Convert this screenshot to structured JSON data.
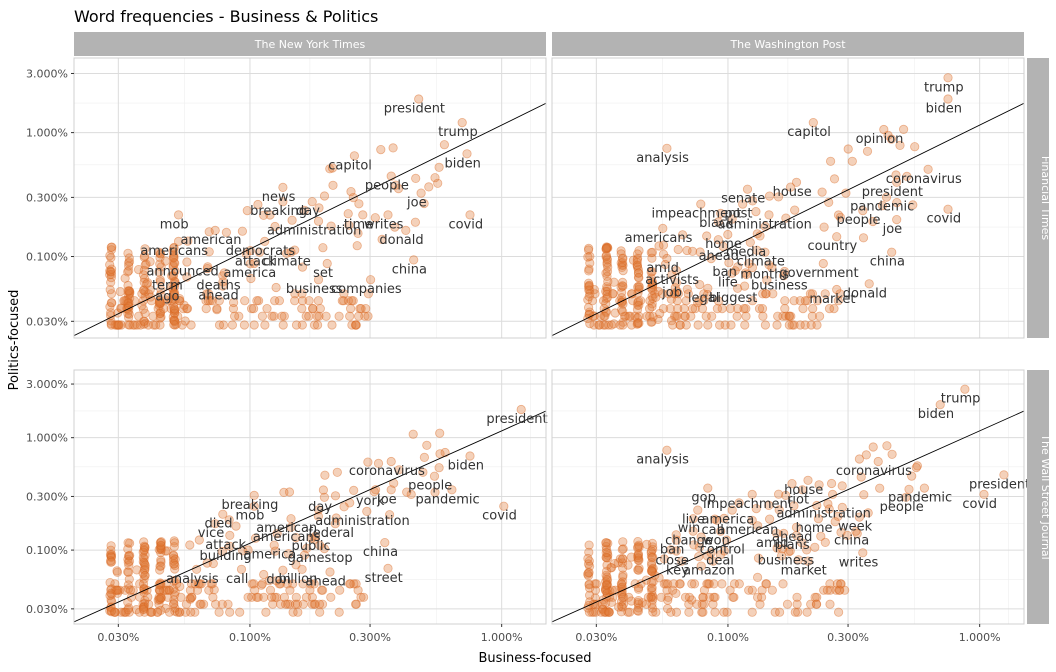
{
  "chart_data": {
    "type": "scatter",
    "title": "Word frequencies - Business & Politics",
    "xlabel": "Business-focused",
    "ylabel": "Politics-focused",
    "x_scale": "log10",
    "y_scale": "log10",
    "xlim": [
      0.02,
      1.5
    ],
    "ylim": [
      0.022,
      4.0
    ],
    "x_ticks": [
      0.03,
      0.1,
      0.3,
      1.0
    ],
    "x_tick_labels": [
      "0.030%",
      "0.100%",
      "0.300%",
      "1.000%"
    ],
    "y_ticks": [
      0.03,
      0.1,
      0.3,
      1.0,
      3.0
    ],
    "y_tick_labels": [
      "0.030%",
      "0.100%",
      "0.300%",
      "1.000%",
      "3.000%"
    ],
    "grid": true,
    "col_facets": [
      "The New York Times",
      "The Washington Post"
    ],
    "row_facets": [
      "Financial Times",
      "The Wall Street Journal"
    ],
    "panels": [
      {
        "politics_source": "The New York Times",
        "business_source": "Financial Times",
        "labels": [
          {
            "word": "president",
            "x": 0.45,
            "y": 1.55
          },
          {
            "word": "trump",
            "x": 0.67,
            "y": 1.0
          },
          {
            "word": "biden",
            "x": 0.7,
            "y": 0.56
          },
          {
            "word": "capitol",
            "x": 0.25,
            "y": 0.54
          },
          {
            "word": "people",
            "x": 0.35,
            "y": 0.37
          },
          {
            "word": "joe",
            "x": 0.46,
            "y": 0.27
          },
          {
            "word": "covid",
            "x": 0.72,
            "y": 0.18
          },
          {
            "word": "news",
            "x": 0.13,
            "y": 0.3
          },
          {
            "word": "day",
            "x": 0.17,
            "y": 0.23
          },
          {
            "word": "breaking",
            "x": 0.13,
            "y": 0.23
          },
          {
            "word": "time",
            "x": 0.27,
            "y": 0.18
          },
          {
            "word": "writes",
            "x": 0.34,
            "y": 0.18
          },
          {
            "word": "mob",
            "x": 0.05,
            "y": 0.18
          },
          {
            "word": "administration",
            "x": 0.18,
            "y": 0.16
          },
          {
            "word": "american",
            "x": 0.07,
            "y": 0.135
          },
          {
            "word": "donald",
            "x": 0.4,
            "y": 0.135
          },
          {
            "word": "americans",
            "x": 0.05,
            "y": 0.11
          },
          {
            "word": "democrats",
            "x": 0.11,
            "y": 0.11
          },
          {
            "word": "attack",
            "x": 0.105,
            "y": 0.09
          },
          {
            "word": "climate",
            "x": 0.14,
            "y": 0.09
          },
          {
            "word": "announced",
            "x": 0.054,
            "y": 0.075
          },
          {
            "word": "america",
            "x": 0.1,
            "y": 0.073
          },
          {
            "word": "set",
            "x": 0.195,
            "y": 0.073
          },
          {
            "word": "china",
            "x": 0.43,
            "y": 0.078
          },
          {
            "word": "term",
            "x": 0.047,
            "y": 0.058
          },
          {
            "word": "deaths",
            "x": 0.075,
            "y": 0.058
          },
          {
            "word": "business",
            "x": 0.18,
            "y": 0.054
          },
          {
            "word": "companies",
            "x": 0.29,
            "y": 0.054
          },
          {
            "word": "ago",
            "x": 0.047,
            "y": 0.047
          },
          {
            "word": "ahead",
            "x": 0.075,
            "y": 0.048
          }
        ]
      },
      {
        "politics_source": "The Washington Post",
        "business_source": "Financial Times",
        "labels": [
          {
            "word": "trump",
            "x": 0.72,
            "y": 2.3
          },
          {
            "word": "biden",
            "x": 0.72,
            "y": 1.55
          },
          {
            "word": "capitol",
            "x": 0.21,
            "y": 1.0
          },
          {
            "word": "opinion",
            "x": 0.4,
            "y": 0.88
          },
          {
            "word": "analysis",
            "x": 0.055,
            "y": 0.62
          },
          {
            "word": "coronavirus",
            "x": 0.6,
            "y": 0.42
          },
          {
            "word": "president",
            "x": 0.45,
            "y": 0.33
          },
          {
            "word": "house",
            "x": 0.18,
            "y": 0.33
          },
          {
            "word": "senate",
            "x": 0.115,
            "y": 0.29
          },
          {
            "word": "pandemic",
            "x": 0.41,
            "y": 0.25
          },
          {
            "word": "impeachment",
            "x": 0.075,
            "y": 0.22
          },
          {
            "word": "post",
            "x": 0.11,
            "y": 0.22
          },
          {
            "word": "covid",
            "x": 0.72,
            "y": 0.2
          },
          {
            "word": "people",
            "x": 0.33,
            "y": 0.195
          },
          {
            "word": "black",
            "x": 0.09,
            "y": 0.185
          },
          {
            "word": "administration",
            "x": 0.14,
            "y": 0.18
          },
          {
            "word": "joe",
            "x": 0.45,
            "y": 0.165
          },
          {
            "word": "americans",
            "x": 0.053,
            "y": 0.14
          },
          {
            "word": "home",
            "x": 0.096,
            "y": 0.125
          },
          {
            "word": "country",
            "x": 0.26,
            "y": 0.12
          },
          {
            "word": "media",
            "x": 0.118,
            "y": 0.108
          },
          {
            "word": "ahead",
            "x": 0.092,
            "y": 0.1
          },
          {
            "word": "climate",
            "x": 0.135,
            "y": 0.09
          },
          {
            "word": "china",
            "x": 0.43,
            "y": 0.09
          },
          {
            "word": "amid",
            "x": 0.055,
            "y": 0.08
          },
          {
            "word": "ban",
            "x": 0.097,
            "y": 0.074
          },
          {
            "word": "months",
            "x": 0.14,
            "y": 0.071
          },
          {
            "word": "government",
            "x": 0.23,
            "y": 0.073
          },
          {
            "word": "activists",
            "x": 0.06,
            "y": 0.064
          },
          {
            "word": "life",
            "x": 0.1,
            "y": 0.061
          },
          {
            "word": "business",
            "x": 0.16,
            "y": 0.058
          },
          {
            "word": "donald",
            "x": 0.35,
            "y": 0.05
          },
          {
            "word": "job",
            "x": 0.06,
            "y": 0.051
          },
          {
            "word": "legal",
            "x": 0.08,
            "y": 0.046
          },
          {
            "word": "biggest",
            "x": 0.105,
            "y": 0.046
          },
          {
            "word": "market",
            "x": 0.26,
            "y": 0.045
          }
        ]
      },
      {
        "politics_source": "The New York Times",
        "business_source": "The Wall Street Journal",
        "labels": [
          {
            "word": "president",
            "x": 1.15,
            "y": 1.45
          },
          {
            "word": "biden",
            "x": 0.72,
            "y": 0.56
          },
          {
            "word": "coronavirus",
            "x": 0.35,
            "y": 0.5
          },
          {
            "word": "people",
            "x": 0.52,
            "y": 0.37
          },
          {
            "word": "pandemic",
            "x": 0.61,
            "y": 0.28
          },
          {
            "word": "york",
            "x": 0.3,
            "y": 0.27
          },
          {
            "word": "joe",
            "x": 0.35,
            "y": 0.28
          },
          {
            "word": "day",
            "x": 0.19,
            "y": 0.24
          },
          {
            "word": "covid",
            "x": 0.98,
            "y": 0.2
          },
          {
            "word": "breaking",
            "x": 0.1,
            "y": 0.25
          },
          {
            "word": "mob",
            "x": 0.1,
            "y": 0.2
          },
          {
            "word": "administration",
            "x": 0.28,
            "y": 0.18
          },
          {
            "word": "died",
            "x": 0.075,
            "y": 0.17
          },
          {
            "word": "american",
            "x": 0.14,
            "y": 0.155
          },
          {
            "word": "vice",
            "x": 0.07,
            "y": 0.14
          },
          {
            "word": "federal",
            "x": 0.21,
            "y": 0.14
          },
          {
            "word": "americans",
            "x": 0.14,
            "y": 0.13
          },
          {
            "word": "attack",
            "x": 0.08,
            "y": 0.11
          },
          {
            "word": "public",
            "x": 0.175,
            "y": 0.108
          },
          {
            "word": "building",
            "x": 0.08,
            "y": 0.088
          },
          {
            "word": "america",
            "x": 0.12,
            "y": 0.09
          },
          {
            "word": "gamestop",
            "x": 0.19,
            "y": 0.084
          },
          {
            "word": "china",
            "x": 0.33,
            "y": 0.095
          },
          {
            "word": "analysis",
            "x": 0.059,
            "y": 0.055
          },
          {
            "word": "call",
            "x": 0.089,
            "y": 0.055
          },
          {
            "word": "don",
            "x": 0.13,
            "y": 0.054
          },
          {
            "word": "billion",
            "x": 0.155,
            "y": 0.055
          },
          {
            "word": "ahead",
            "x": 0.2,
            "y": 0.052
          },
          {
            "word": "street",
            "x": 0.34,
            "y": 0.056
          }
        ]
      },
      {
        "politics_source": "The Washington Post",
        "business_source": "The Wall Street Journal",
        "labels": [
          {
            "word": "trump",
            "x": 0.84,
            "y": 2.2
          },
          {
            "word": "biden",
            "x": 0.67,
            "y": 1.6
          },
          {
            "word": "analysis",
            "x": 0.055,
            "y": 0.63
          },
          {
            "word": "coronavirus",
            "x": 0.38,
            "y": 0.5
          },
          {
            "word": "house",
            "x": 0.2,
            "y": 0.34
          },
          {
            "word": "pandemic",
            "x": 0.58,
            "y": 0.29
          },
          {
            "word": "president",
            "x": 1.2,
            "y": 0.38
          },
          {
            "word": "gop",
            "x": 0.08,
            "y": 0.29
          },
          {
            "word": "riot",
            "x": 0.19,
            "y": 0.28
          },
          {
            "word": "impeachment",
            "x": 0.12,
            "y": 0.255
          },
          {
            "word": "people",
            "x": 0.49,
            "y": 0.24
          },
          {
            "word": "covid",
            "x": 1.0,
            "y": 0.255
          },
          {
            "word": "administration",
            "x": 0.24,
            "y": 0.21
          },
          {
            "word": "live",
            "x": 0.073,
            "y": 0.185
          },
          {
            "word": "america",
            "x": 0.1,
            "y": 0.185
          },
          {
            "word": "win",
            "x": 0.07,
            "y": 0.155
          },
          {
            "word": "call",
            "x": 0.087,
            "y": 0.15
          },
          {
            "word": "american",
            "x": 0.12,
            "y": 0.15
          },
          {
            "word": "home",
            "x": 0.22,
            "y": 0.155
          },
          {
            "word": "week",
            "x": 0.32,
            "y": 0.16
          },
          {
            "word": "ahead",
            "x": 0.18,
            "y": 0.13
          },
          {
            "word": "change",
            "x": 0.07,
            "y": 0.12
          },
          {
            "word": "won",
            "x": 0.09,
            "y": 0.12
          },
          {
            "word": "china",
            "x": 0.31,
            "y": 0.12
          },
          {
            "word": "amid",
            "x": 0.15,
            "y": 0.115
          },
          {
            "word": "plans",
            "x": 0.18,
            "y": 0.11
          },
          {
            "word": "ban",
            "x": 0.06,
            "y": 0.1
          },
          {
            "word": "control",
            "x": 0.095,
            "y": 0.1
          },
          {
            "word": "close",
            "x": 0.06,
            "y": 0.08
          },
          {
            "word": "deal",
            "x": 0.093,
            "y": 0.08
          },
          {
            "word": "business",
            "x": 0.17,
            "y": 0.08
          },
          {
            "word": "writes",
            "x": 0.33,
            "y": 0.077
          },
          {
            "word": "key",
            "x": 0.063,
            "y": 0.065
          },
          {
            "word": "amazon",
            "x": 0.084,
            "y": 0.065
          },
          {
            "word": "market",
            "x": 0.2,
            "y": 0.065
          }
        ]
      }
    ]
  }
}
